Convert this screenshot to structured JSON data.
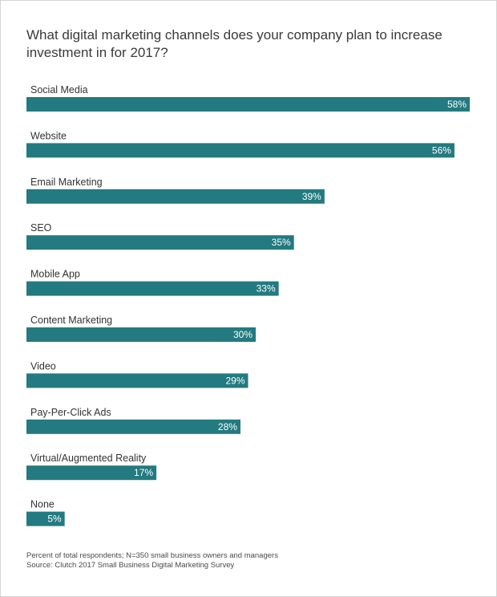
{
  "title": "What digital marketing channels does your company plan to increase investment in for 2017?",
  "footnote": {
    "note": "Percent of total respondents; N=350 small business owners and managers",
    "source": "Source: Clutch 2017 Small Business Digital Marketing Survey"
  },
  "colors": {
    "bar": "#237A80",
    "value_text": "#ffffff"
  },
  "chart_data": {
    "type": "bar",
    "orientation": "horizontal",
    "title": "What digital marketing channels does your company plan to increase investment in for 2017?",
    "categories": [
      "Social Media",
      "Website",
      "Email Marketing",
      "SEO",
      "Mobile App",
      "Content Marketing",
      "Video",
      "Pay-Per-Click Ads",
      "Virtual/Augmented Reality",
      "None"
    ],
    "values": [
      58,
      56,
      39,
      35,
      33,
      30,
      29,
      28,
      17,
      5
    ],
    "value_labels": [
      "58%",
      "56%",
      "39%",
      "35%",
      "33%",
      "30%",
      "29%",
      "28%",
      "17%",
      "5%"
    ],
    "unit": "%",
    "xlim": [
      0,
      58
    ],
    "grid": false,
    "legend": "none"
  }
}
